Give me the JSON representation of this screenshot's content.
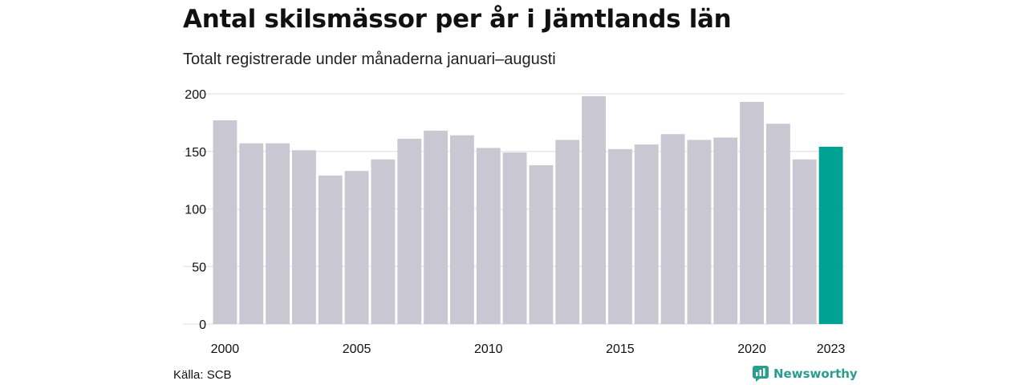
{
  "title": "Antal skilsmässor per år i Jämtlands län",
  "subtitle": "Totalt registrerade under månaderna januari–augusti",
  "source": "Källa: SCB",
  "brand": "Newsworthy",
  "colors": {
    "bar": "#c8c7d2",
    "highlight": "#00a294",
    "grid": "#e3e3e8",
    "brand": "#2a9d8f"
  },
  "chart_data": {
    "type": "bar",
    "categories": [
      "2000",
      "2001",
      "2002",
      "2003",
      "2004",
      "2005",
      "2006",
      "2007",
      "2008",
      "2009",
      "2010",
      "2011",
      "2012",
      "2013",
      "2014",
      "2015",
      "2016",
      "2017",
      "2018",
      "2019",
      "2020",
      "2021",
      "2022",
      "2023"
    ],
    "values": [
      177,
      157,
      157,
      151,
      129,
      133,
      143,
      161,
      168,
      164,
      153,
      149,
      138,
      160,
      198,
      152,
      156,
      165,
      160,
      162,
      193,
      174,
      143,
      154
    ],
    "highlight_category": "2023",
    "x_tick_labels": [
      "2000",
      "2005",
      "2010",
      "2015",
      "2020",
      "2023"
    ],
    "y_ticks": [
      0,
      50,
      100,
      150,
      200
    ],
    "ylim": [
      0,
      200
    ],
    "xlabel": "",
    "ylabel": "",
    "grid": true
  }
}
